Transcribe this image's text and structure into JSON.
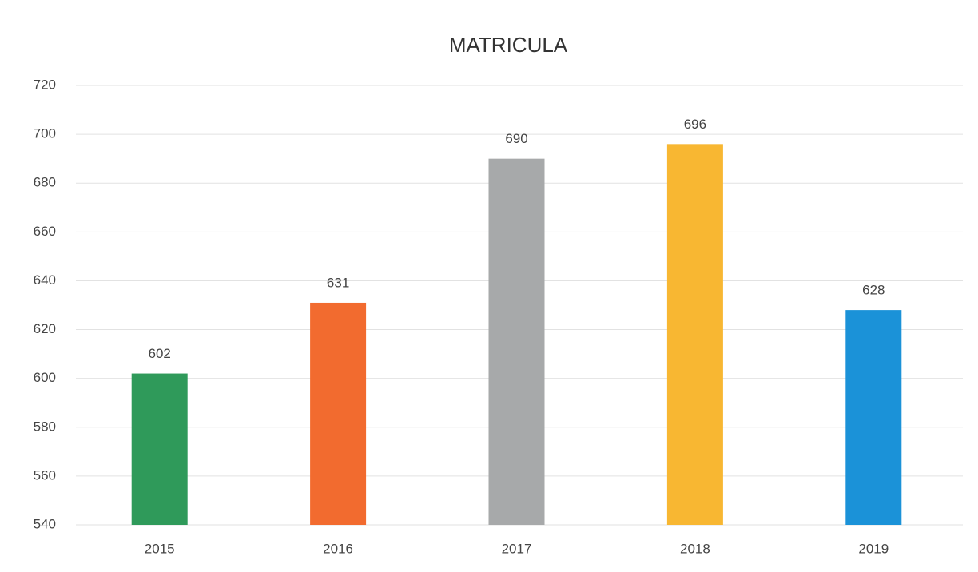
{
  "chart_data": {
    "type": "bar",
    "title": "MATRICULA",
    "categories": [
      "2015",
      "2016",
      "2017",
      "2018",
      "2019"
    ],
    "values": [
      602,
      631,
      690,
      696,
      628
    ],
    "colors": [
      "#2f9a5a",
      "#f26b2f",
      "#a7a9aa",
      "#f8b732",
      "#1b92d8"
    ],
    "ylim": [
      540,
      720
    ],
    "yticks": [
      540,
      560,
      580,
      600,
      620,
      640,
      660,
      680,
      700,
      720
    ],
    "grid": true,
    "data_labels": true
  }
}
